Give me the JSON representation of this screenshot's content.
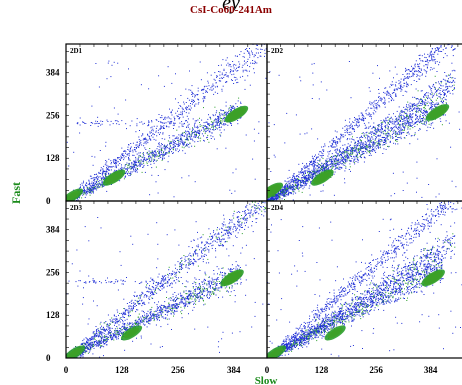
{
  "figure": {
    "top_caption": "ey",
    "title": "CsI-Co60-241Am",
    "xlabel": "Slow",
    "ylabel": "Fast",
    "title_color": "#8b0000",
    "label_color": "#1a8a1a"
  },
  "chart_data": {
    "type": "heatmap",
    "title": "CsI-Co60-241Am",
    "xlabel": "Slow",
    "ylabel": "Fast",
    "xlim": [
      0,
      460
    ],
    "ylim": [
      0,
      470
    ],
    "xticks": [
      0,
      128,
      256,
      384
    ],
    "yticks": [
      0,
      128,
      256,
      384
    ],
    "grid": false,
    "colormap": [
      "#1f2fd6",
      "#2a9d2a",
      "#e0c000",
      "#e03070",
      "#ffb0f0"
    ],
    "panels": [
      {
        "name": "2D1",
        "bands": [
          {
            "label": "fast-slow line",
            "slope": 1.04,
            "x_range": [
              0,
              460
            ],
            "width": 7,
            "density": "low"
          },
          {
            "label": "main band",
            "slope": 0.69,
            "x_range": [
              0,
              400
            ],
            "width": 6,
            "density": "high"
          },
          {
            "label": "horizontal",
            "slope": 0.0,
            "y": 236,
            "x_range": [
              20,
              380
            ],
            "width": 5,
            "density": "sparse"
          }
        ],
        "hotspots": [
          {
            "x": 110,
            "y": 70,
            "level": 4
          },
          {
            "x": 390,
            "y": 260,
            "level": 5
          },
          {
            "x": 15,
            "y": 15,
            "level": 3
          }
        ]
      },
      {
        "name": "2D2",
        "bands": [
          {
            "label": "fast-slow line",
            "slope": 1.12,
            "x_range": [
              0,
              440
            ],
            "width": 6,
            "density": "low"
          },
          {
            "label": "upper band",
            "slope": 0.82,
            "x_range": [
              0,
              440
            ],
            "width": 6,
            "density": "medium"
          },
          {
            "label": "main band",
            "slope": 0.69,
            "x_range": [
              0,
              420
            ],
            "width": 7,
            "density": "high"
          }
        ],
        "hotspots": [
          {
            "x": 130,
            "y": 70,
            "level": 4
          },
          {
            "x": 400,
            "y": 265,
            "level": 5
          },
          {
            "x": 10,
            "y": 30,
            "level": 5
          }
        ]
      },
      {
        "name": "2D3",
        "bands": [
          {
            "label": "fast-slow line",
            "slope": 1.04,
            "x_range": [
              0,
              460
            ],
            "width": 7,
            "density": "medium"
          },
          {
            "label": "main band",
            "slope": 0.65,
            "x_range": [
              0,
              400
            ],
            "width": 6,
            "density": "high"
          },
          {
            "label": "horizontal",
            "slope": 0.0,
            "y": 230,
            "x_range": [
              20,
              380
            ],
            "width": 5,
            "density": "sparse"
          }
        ],
        "hotspots": [
          {
            "x": 150,
            "y": 75,
            "level": 3
          },
          {
            "x": 380,
            "y": 240,
            "level": 5
          },
          {
            "x": 20,
            "y": 15,
            "level": 3
          }
        ]
      },
      {
        "name": "2D4",
        "bands": [
          {
            "label": "fast-slow line",
            "slope": 1.1,
            "x_range": [
              0,
              460
            ],
            "width": 6,
            "density": "low"
          },
          {
            "label": "upper band",
            "slope": 0.8,
            "x_range": [
              0,
              440
            ],
            "width": 6,
            "density": "medium"
          },
          {
            "label": "main band",
            "slope": 0.67,
            "x_range": [
              0,
              410
            ],
            "width": 6,
            "density": "high"
          }
        ],
        "hotspots": [
          {
            "x": 160,
            "y": 75,
            "level": 3
          },
          {
            "x": 390,
            "y": 240,
            "level": 5
          },
          {
            "x": 20,
            "y": 15,
            "level": 3
          }
        ]
      }
    ]
  }
}
